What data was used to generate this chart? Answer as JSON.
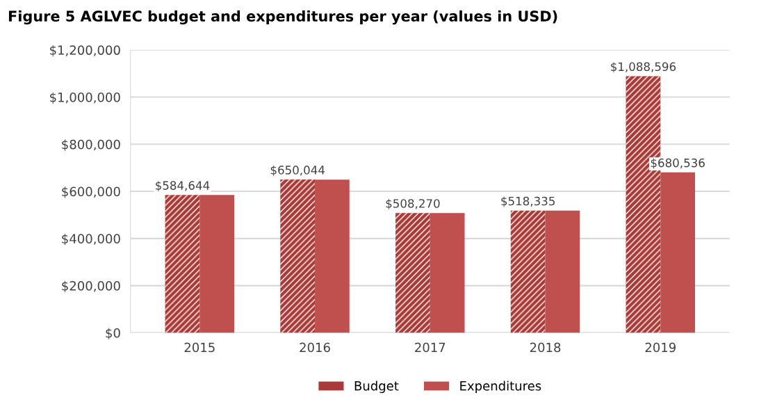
{
  "chart_data": {
    "type": "bar",
    "title": "Figure 5 AGLVEC budget and expenditures per year (values in USD)",
    "categories": [
      "2015",
      "2016",
      "2017",
      "2018",
      "2019"
    ],
    "series": [
      {
        "name": "Budget",
        "color": "#a93a37",
        "values": [
          584644,
          650044,
          508270,
          518335,
          1088596
        ],
        "value_labels": [
          "$584,644",
          "$650,044",
          "$508,270",
          "$518,335",
          "$1,088,596"
        ]
      },
      {
        "name": "Expenditures",
        "color": "#c0504d",
        "values": [
          585000,
          650000,
          508000,
          518000,
          680536
        ],
        "value_labels": [
          null,
          null,
          null,
          null,
          "$680,536"
        ]
      }
    ],
    "ylim": [
      0,
      1200000
    ],
    "yticks": [
      {
        "value": 0,
        "label": "$0"
      },
      {
        "value": 200000,
        "label": "$200,000"
      },
      {
        "value": 400000,
        "label": "$400,000"
      },
      {
        "value": 600000,
        "label": "$600,000"
      },
      {
        "value": 800000,
        "label": "$800,000"
      },
      {
        "value": 1000000,
        "label": "$1,000,000"
      },
      {
        "value": 1200000,
        "label": "$1,200,000"
      }
    ],
    "grid": "y",
    "legend": "bottom"
  }
}
